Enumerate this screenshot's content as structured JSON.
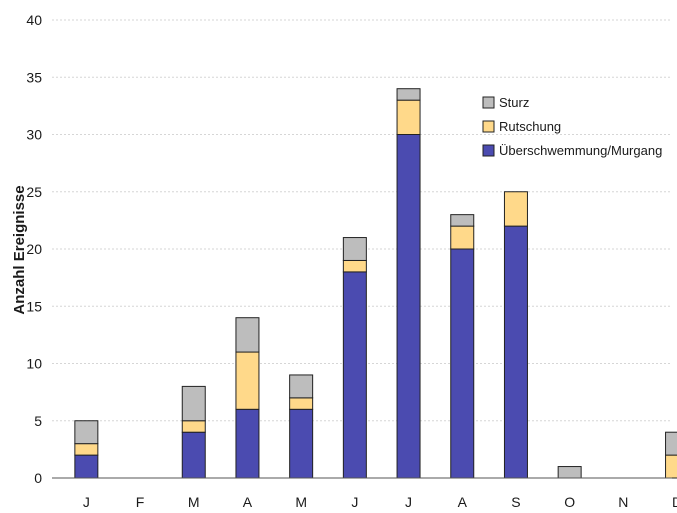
{
  "chart_data": {
    "type": "bar",
    "stacked": true,
    "title": "",
    "xlabel": "",
    "ylabel": "Anzahl Ereignisse",
    "ylim": [
      0,
      40
    ],
    "yticks": [
      0,
      5,
      10,
      15,
      20,
      25,
      30,
      35,
      40
    ],
    "grid": true,
    "legend_position": "top-right",
    "categories": [
      "J",
      "F",
      "M",
      "A",
      "M",
      "J",
      "J",
      "A",
      "S",
      "O",
      "N",
      "D"
    ],
    "series": [
      {
        "name": "Überschwemmung/Murgang",
        "color": "#4b4bb0",
        "values": [
          2,
          0,
          4,
          6,
          6,
          18,
          30,
          20,
          22,
          0,
          0,
          0
        ]
      },
      {
        "name": "Rutschung",
        "color": "#ffd98a",
        "values": [
          1,
          0,
          1,
          5,
          1,
          1,
          3,
          2,
          3,
          0,
          0,
          2
        ]
      },
      {
        "name": "Sturz",
        "color": "#bdbdbd",
        "values": [
          2,
          0,
          3,
          3,
          2,
          2,
          1,
          1,
          0,
          1,
          0,
          2
        ]
      }
    ],
    "legend_order": [
      "Sturz",
      "Rutschung",
      "Überschwemmung/Murgang"
    ]
  }
}
